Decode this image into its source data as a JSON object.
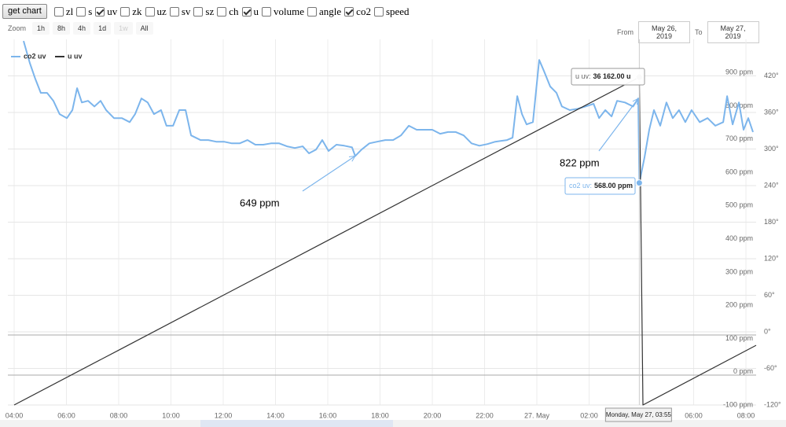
{
  "toolbar": {
    "button": "get chart",
    "checkboxes": [
      {
        "label": "zl",
        "checked": false
      },
      {
        "label": "s",
        "checked": false
      },
      {
        "label": "uv",
        "checked": true
      },
      {
        "label": "zk",
        "checked": false
      },
      {
        "label": "uz",
        "checked": false
      },
      {
        "label": "sv",
        "checked": false
      },
      {
        "label": "sz",
        "checked": false
      },
      {
        "label": "ch",
        "checked": false
      },
      {
        "label": "u",
        "checked": true
      },
      {
        "label": "volume",
        "checked": false
      },
      {
        "label": "angle",
        "checked": false
      },
      {
        "label": "co2",
        "checked": true
      },
      {
        "label": "speed",
        "checked": false
      }
    ]
  },
  "zoom": {
    "label": "Zoom",
    "buttons": [
      "1h",
      "8h",
      "4h",
      "1d",
      "1w",
      "All"
    ],
    "disabled": [
      false,
      false,
      false,
      false,
      true,
      false
    ]
  },
  "range": {
    "from_label": "From",
    "from": "May 26, 2019",
    "to_label": "To",
    "to": "May 27, 2019"
  },
  "chart_data": {
    "type": "line",
    "xlim": [
      -0.24,
      28.39
    ],
    "xticks": [
      {
        "value": 0,
        "label": "04:00"
      },
      {
        "value": 2,
        "label": "06:00"
      },
      {
        "value": 4,
        "label": "08:00"
      },
      {
        "value": 6,
        "label": "10:00"
      },
      {
        "value": 8,
        "label": "12:00"
      },
      {
        "value": 10,
        "label": "14:00"
      },
      {
        "value": 12,
        "label": "16:00"
      },
      {
        "value": 14,
        "label": "18:00"
      },
      {
        "value": 16,
        "label": "20:00"
      },
      {
        "value": 18,
        "label": "22:00"
      },
      {
        "value": 20,
        "label": "27. May"
      },
      {
        "value": 22,
        "label": "02:00"
      },
      {
        "value": 26,
        "label": "06:00"
      },
      {
        "value": 28,
        "label": "08:00"
      }
    ],
    "ylim": [
      -100,
      1000
    ],
    "yticks": [
      {
        "value": -100,
        "label": "-100 ppm"
      },
      {
        "value": 0,
        "label": "0 ppm"
      },
      {
        "value": 100,
        "label": "100 ppm"
      },
      {
        "value": 200,
        "label": "200 ppm"
      },
      {
        "value": 300,
        "label": "300 ppm"
      },
      {
        "value": 400,
        "label": "400 ppm"
      },
      {
        "value": 500,
        "label": "500 ppm"
      },
      {
        "value": 600,
        "label": "600 ppm"
      },
      {
        "value": 700,
        "label": "700 ppm"
      },
      {
        "value": 800,
        "label": "800 ppm"
      },
      {
        "value": 900,
        "label": "900 ppm"
      }
    ],
    "y2lim": [
      -120,
      480
    ],
    "y2ticks": [
      {
        "value": -120,
        "label": "-120°"
      },
      {
        "value": -60,
        "label": "-60°"
      },
      {
        "value": 0,
        "label": "0°"
      },
      {
        "value": 60,
        "label": "60°"
      },
      {
        "value": 120,
        "label": "120°"
      },
      {
        "value": 180,
        "label": "180°"
      },
      {
        "value": 240,
        "label": "240°"
      },
      {
        "value": 300,
        "label": "300°"
      },
      {
        "value": 360,
        "label": "360°"
      },
      {
        "value": 420,
        "label": "420°"
      }
    ],
    "grid": true,
    "series": [
      {
        "name": "co2 uv",
        "color": "#7cb5ec",
        "x": [
          0.36,
          0.6,
          0.81,
          1.02,
          1.26,
          1.5,
          1.74,
          2.02,
          2.23,
          2.41,
          2.59,
          2.83,
          3.07,
          3.31,
          3.52,
          3.82,
          4.12,
          4.42,
          4.63,
          4.87,
          5.11,
          5.35,
          5.62,
          5.83,
          6.08,
          6.32,
          6.56,
          6.77,
          7.13,
          7.43,
          7.73,
          8.03,
          8.33,
          8.63,
          8.93,
          9.23,
          9.53,
          9.83,
          10.14,
          10.44,
          10.74,
          11.04,
          11.28,
          11.55,
          11.79,
          12.03,
          12.33,
          12.63,
          12.93,
          13.05,
          13.29,
          13.59,
          13.89,
          14.2,
          14.5,
          14.8,
          15.1,
          15.4,
          15.7,
          16,
          16.3,
          16.6,
          16.9,
          17.2,
          17.5,
          17.8,
          18.11,
          18.41,
          18.86,
          19.07,
          19.25,
          19.43,
          19.61,
          19.85,
          20.09,
          20.27,
          20.51,
          20.75,
          20.96,
          21.26,
          21.56,
          21.86,
          22.17,
          22.38,
          22.62,
          22.86,
          23.07,
          23.37,
          23.68,
          23.88,
          23.92,
          24.12,
          24.3,
          24.48,
          24.72,
          24.96,
          25.2,
          25.44,
          25.68,
          25.92,
          26.23,
          26.53,
          26.83,
          27.13,
          27.28,
          27.49,
          27.73,
          27.91,
          28.09,
          28.27
        ],
        "values": [
          995,
          929,
          881,
          839,
          839,
          815,
          775,
          763,
          787,
          853,
          810,
          815,
          798,
          815,
          787,
          763,
          763,
          751,
          775,
          822,
          810,
          775,
          787,
          740,
          740,
          787,
          787,
          711,
          697,
          697,
          692,
          692,
          687,
          687,
          697,
          683,
          683,
          687,
          687,
          678,
          673,
          678,
          657,
          668,
          697,
          664,
          683,
          680,
          675,
          649,
          668,
          687,
          692,
          697,
          697,
          711,
          740,
          728,
          728,
          728,
          716,
          721,
          721,
          711,
          687,
          680,
          685,
          692,
          697,
          704,
          829,
          775,
          744,
          751,
          938,
          905,
          858,
          839,
          798,
          787,
          791,
          798,
          806,
          763,
          787,
          768,
          815,
          810,
          798,
          822,
          568,
          645,
          728,
          787,
          740,
          810,
          763,
          787,
          751,
          787,
          751,
          763,
          740,
          751,
          829,
          744,
          810,
          728,
          763,
          721
        ]
      },
      {
        "name": "u uv",
        "color": "#333333",
        "axis": "y2",
        "x": [
          0,
          4,
          8,
          12,
          16,
          20,
          23.92,
          24.06,
          28.39
        ],
        "values": [
          -120,
          -30,
          60,
          150,
          240,
          330,
          418,
          -120,
          -22
        ]
      }
    ],
    "annotations": [
      {
        "text": "649 ppm",
        "x": 13.05,
        "y": 649
      },
      {
        "text": "822 ppm",
        "x": 23.88,
        "y": 822
      }
    ],
    "crosshair": {
      "x": 23.92,
      "label": "Monday, May 27, 03:55"
    },
    "tooltips": [
      {
        "label": "u uv:",
        "value": "36 162.00 u"
      },
      {
        "label": "co2 uv:",
        "value": "568.00 ppm"
      }
    ]
  }
}
